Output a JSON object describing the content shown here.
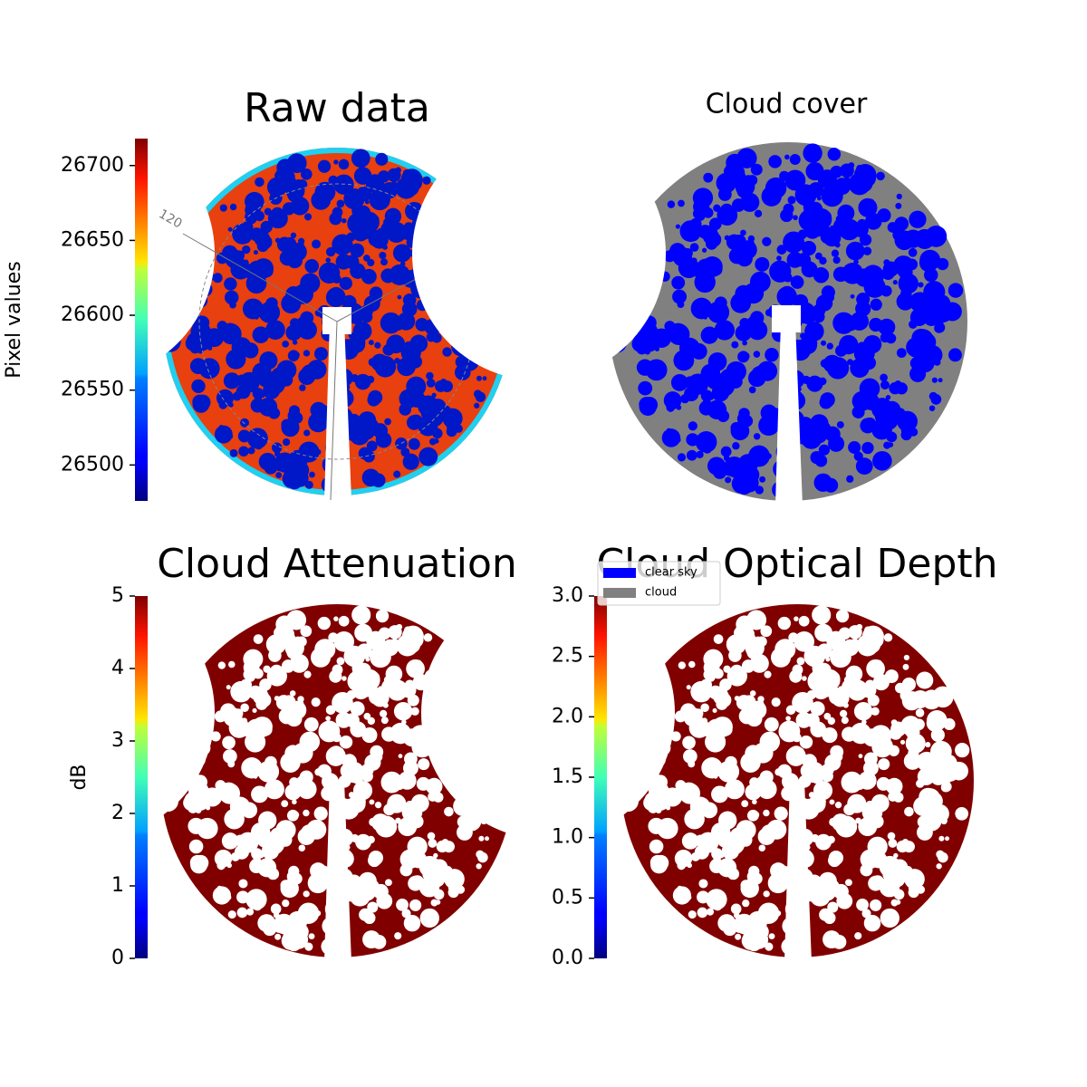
{
  "chart_data": [
    {
      "type": "image",
      "title": "Raw data",
      "colormap": "jet",
      "colorbar_label": "Pixel values",
      "clim": [
        26476,
        26718
      ],
      "cticks": [
        26500,
        26550,
        26600,
        26650,
        26700
      ],
      "polar_label": "120"
    },
    {
      "type": "mask",
      "title": "Cloud cover",
      "legend": [
        {
          "name": "clear sky",
          "color": "#0000ff"
        },
        {
          "name": "cloud",
          "color": "#808080"
        }
      ],
      "legend_position": "lower left"
    },
    {
      "type": "image",
      "title": "Cloud Attenuation",
      "colormap": "jet",
      "colorbar_label": "dB",
      "color": "#800000",
      "clim": [
        0,
        5
      ],
      "cticks": [
        0,
        1,
        2,
        3,
        4,
        5
      ]
    },
    {
      "type": "image",
      "title": "Cloud Optical Depth",
      "colormap": "jet",
      "color": "#800000",
      "clim": [
        0,
        3
      ],
      "cticks": [
        {
          "value": 0,
          "label": "0.0"
        },
        0.5,
        {
          "value": 1,
          "label": "1.0"
        },
        1.5,
        {
          "value": 2,
          "label": "2.0"
        },
        2.5,
        {
          "value": 3,
          "label": "3.0"
        }
      ]
    }
  ]
}
